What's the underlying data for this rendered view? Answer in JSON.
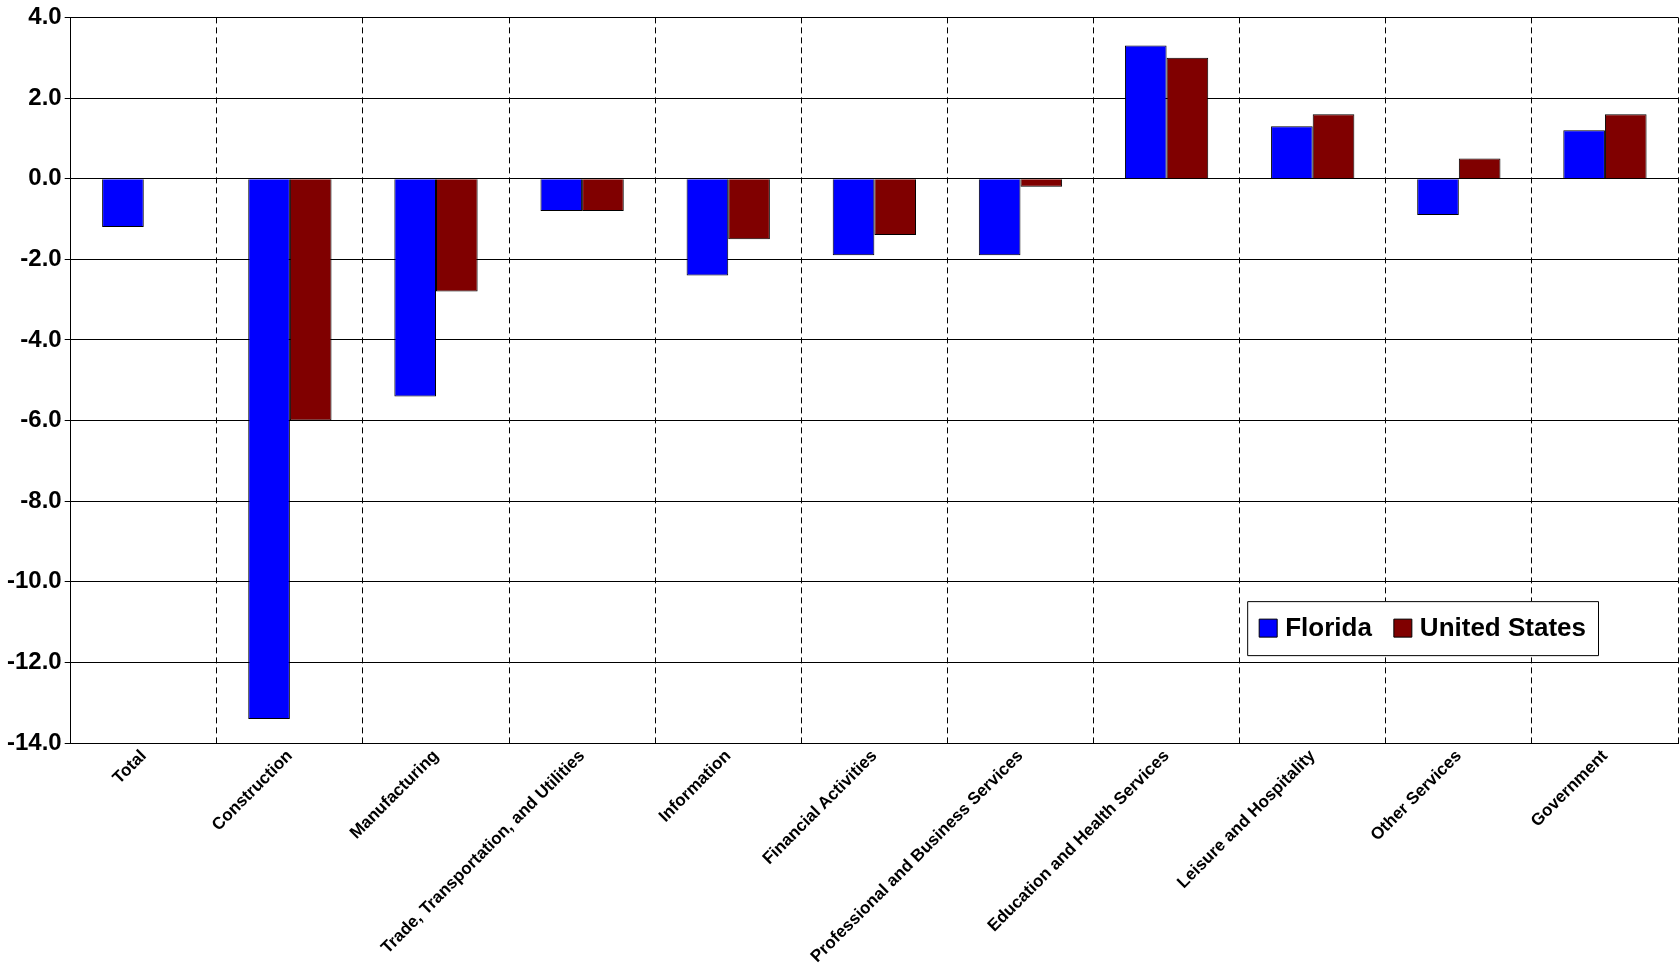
{
  "chart_data": {
    "type": "bar",
    "categories": [
      "Total",
      "Construction",
      "Manufacturing",
      "Trade, Transportation, and Utilities",
      "Information",
      "Financial Activities",
      "Professional and Business Services",
      "Education and Health Services",
      "Leisure and Hospitality",
      "Other Services",
      "Government"
    ],
    "series": [
      {
        "name": "Florida",
        "color": "#0000ff",
        "values": [
          -1.2,
          -13.4,
          -5.4,
          -0.8,
          -2.4,
          -1.9,
          -1.9,
          3.3,
          1.3,
          -0.9,
          1.2
        ]
      },
      {
        "name": "United States",
        "color": "#800000",
        "values": [
          null,
          -6.0,
          -2.8,
          -0.8,
          -1.5,
          -1.4,
          -0.2,
          3.0,
          1.6,
          0.5,
          1.6
        ]
      }
    ],
    "ylim": [
      -14,
      4
    ],
    "yticks": [
      {
        "value": 4,
        "label": "4.0"
      },
      {
        "value": 2,
        "label": "2.0"
      },
      {
        "value": 0,
        "label": "0.0"
      },
      {
        "value": -2,
        "label": "-2.0"
      },
      {
        "value": -4,
        "label": "-4.0"
      },
      {
        "value": -6,
        "label": "-6.0"
      },
      {
        "value": -8,
        "label": "-8.0"
      },
      {
        "value": -10,
        "label": "-10.0"
      },
      {
        "value": -12,
        "label": "-12.0"
      },
      {
        "value": -14,
        "label": "-14.0"
      }
    ],
    "grid": true,
    "legend": "bottom right"
  }
}
